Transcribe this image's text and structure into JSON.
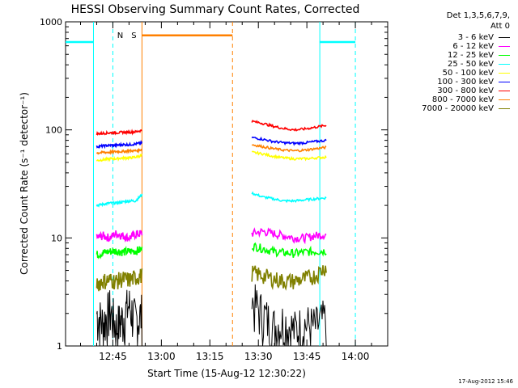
{
  "chart_data": {
    "type": "line",
    "title": "HESSI Observing Summary Count Rates, Corrected",
    "xlabel": "Start Time (15-Aug-12 12:30:22)",
    "ylabel": "Corrected Count Rate (s⁻¹ detector⁻¹)",
    "ylog": true,
    "ylim": [
      1,
      1000
    ],
    "xlim": [
      "12:30:22",
      "14:10:00"
    ],
    "x_ticks": [
      "12:45",
      "13:00",
      "13:15",
      "13:30",
      "13:45",
      "14:00"
    ],
    "y_ticks": [
      "1",
      "10",
      "100",
      "1000"
    ],
    "legend_header": [
      "Det 1,3,5,6,7,9,",
      "Att 0"
    ],
    "legend_position": "top-right",
    "series": [
      {
        "name": "3 - 6 keV",
        "color": "#000000",
        "segments": [
          [
            "12:40:00",
            "12:54:00",
            [
              2.0,
              1.6,
              2.2,
              1.5,
              1.8,
              2.4,
              1.7,
              2.0
            ]
          ],
          [
            "13:28:00",
            "13:51:00",
            [
              2.6,
              2.0,
              1.5,
              1.7,
              1.4,
              1.6,
              1.5,
              1.8
            ]
          ]
        ]
      },
      {
        "name": "6 - 12 keV",
        "color": "#ff00ff",
        "segments": [
          [
            "12:40:00",
            "12:54:00",
            [
              10,
              10.5,
              10,
              11,
              10.5,
              10,
              10.8,
              11
            ]
          ],
          [
            "13:28:00",
            "13:51:00",
            [
              11,
              11.5,
              11,
              10.5,
              10,
              10,
              10.5,
              10.8
            ]
          ]
        ]
      },
      {
        "name": "12 - 25 keV",
        "color": "#00ff00",
        "segments": [
          [
            "12:40:00",
            "12:54:00",
            [
              7,
              7.3,
              7.5,
              7.6,
              7.4,
              7.5,
              7.6,
              7.8
            ]
          ],
          [
            "13:28:00",
            "13:51:00",
            [
              8.5,
              8,
              7.5,
              7.3,
              7.2,
              7.4,
              7.5,
              7.6
            ]
          ]
        ]
      },
      {
        "name": "25 - 50 keV",
        "color": "#00ffff",
        "segments": [
          [
            "12:40:00",
            "12:54:00",
            [
              20,
              20.5,
              21,
              21,
              21.5,
              22,
              22,
              25
            ]
          ],
          [
            "13:28:00",
            "13:51:00",
            [
              26,
              24,
              23,
              22,
              22,
              22.5,
              23,
              23.5
            ]
          ]
        ]
      },
      {
        "name": "50 - 100 keV",
        "color": "#ffff00",
        "segments": [
          [
            "12:40:00",
            "12:54:00",
            [
              52,
              53,
              54,
              54,
              55,
              55,
              56,
              58
            ]
          ],
          [
            "13:28:00",
            "13:51:00",
            [
              62,
              60,
              57,
              55,
              54,
              54,
              55,
              56
            ]
          ]
        ]
      },
      {
        "name": "100 - 300 keV",
        "color": "#0000ff",
        "segments": [
          [
            "12:40:00",
            "12:54:00",
            [
              70,
              71,
              72,
              72,
              73,
              73,
              74,
              76
            ]
          ],
          [
            "13:28:00",
            "13:51:00",
            [
              85,
              82,
              78,
              76,
              75,
              76,
              78,
              80
            ]
          ]
        ]
      },
      {
        "name": "300 - 800 keV",
        "color": "#ff0000",
        "segments": [
          [
            "12:40:00",
            "12:54:00",
            [
              92,
              93,
              94,
              94,
              95,
              95,
              96,
              99
            ]
          ],
          [
            "13:28:00",
            "13:51:00",
            [
              120,
              115,
              108,
              103,
              100,
              102,
              106,
              110
            ]
          ]
        ]
      },
      {
        "name": "800 - 7000 keV",
        "color": "#ff8000",
        "segments": [
          [
            "12:40:00",
            "12:54:00",
            [
              61,
              62,
              62,
              63,
              63,
              64,
              64,
              66
            ]
          ],
          [
            "13:28:00",
            "13:51:00",
            [
              73,
              70,
              67,
              65,
              64,
              65,
              67,
              69
            ]
          ]
        ]
      },
      {
        "name": "7000 - 20000 keV",
        "color": "#808000",
        "segments": [
          [
            "12:40:00",
            "12:54:00",
            [
              3.8,
              4,
              4.1,
              4.0,
              4.2,
              4.1,
              4.3,
              4.5
            ]
          ],
          [
            "13:28:00",
            "13:51:00",
            [
              4.8,
              4.5,
              4.2,
              4.0,
              4.0,
              4.2,
              4.5,
              5.5
            ]
          ]
        ]
      }
    ],
    "annotations": [
      {
        "label": "N",
        "color": "#00ffff",
        "style": "night",
        "level": 650,
        "flat_spans": [
          [
            "12:30:22",
            "12:39:00"
          ],
          [
            "13:49:00",
            "14:00:00"
          ]
        ],
        "marks": [
          {
            "time": "12:39:00",
            "dashed": false
          },
          {
            "time": "12:45:00",
            "dashed": true
          },
          {
            "time": "13:49:00",
            "dashed": false
          },
          {
            "time": "14:00:00",
            "dashed": true
          }
        ]
      },
      {
        "label": "S",
        "color": "#ff8000",
        "style": "saa",
        "level": 750,
        "flat_spans": [
          [
            "12:54:00",
            "13:22:00"
          ]
        ],
        "marks": [
          {
            "time": "12:54:00",
            "dashed": false
          },
          {
            "time": "13:22:00",
            "dashed": true
          }
        ]
      }
    ]
  },
  "footer_timestamp": "17-Aug-2012 15:46"
}
